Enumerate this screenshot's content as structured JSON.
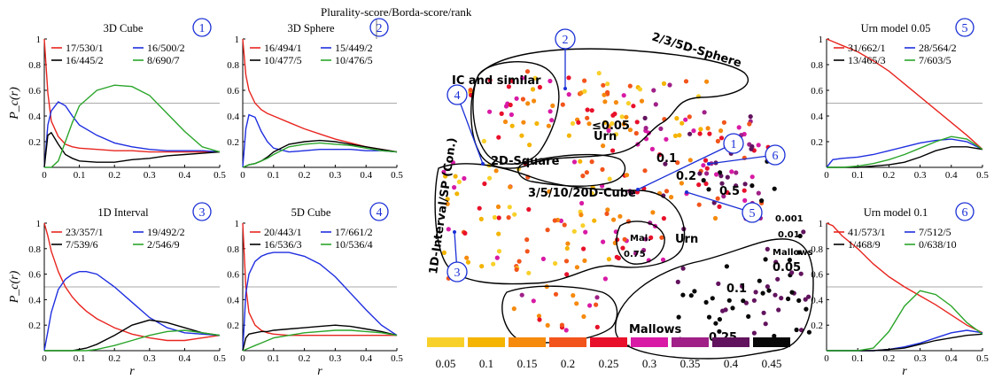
{
  "header_note": "Plurality-score/Borda-score/rank",
  "chart_data": [
    {
      "type": "line",
      "id": 1,
      "title": "3D Cube",
      "badge": "1",
      "xlabel": "",
      "ylabel": "P_c(r)",
      "xlim": [
        0,
        0.5
      ],
      "ylim": [
        0,
        1
      ],
      "xticks": [
        "0",
        "0.1",
        "0.2",
        "0.3",
        "0.4",
        "0.5"
      ],
      "yticks": [
        "0.2",
        "0.4",
        "0.6",
        "0.8",
        "1"
      ],
      "reference_line": 0.5,
      "x": [
        0,
        0.01,
        0.02,
        0.04,
        0.06,
        0.08,
        0.1,
        0.15,
        0.2,
        0.25,
        0.3,
        0.35,
        0.4,
        0.45,
        0.5
      ],
      "series": [
        {
          "name": "17/530/1",
          "color": "#e8251f",
          "values": [
            1,
            0.58,
            0.36,
            0.24,
            0.18,
            0.16,
            0.15,
            0.14,
            0.13,
            0.13,
            0.12,
            0.12,
            0.12,
            0.12,
            0.12
          ]
        },
        {
          "name": "16/500/2",
          "color": "#1f2ee0",
          "values": [
            0,
            0.33,
            0.44,
            0.51,
            0.48,
            0.4,
            0.33,
            0.25,
            0.19,
            0.16,
            0.14,
            0.13,
            0.13,
            0.13,
            0.12
          ]
        },
        {
          "name": "16/445/2",
          "color": "#000000",
          "values": [
            0,
            0.25,
            0.27,
            0.18,
            0.1,
            0.07,
            0.05,
            0.04,
            0.04,
            0.06,
            0.07,
            0.09,
            0.1,
            0.11,
            0.12
          ]
        },
        {
          "name": "8/690/7",
          "color": "#2aa52a",
          "values": [
            0,
            0.0,
            0.0,
            0.05,
            0.2,
            0.35,
            0.48,
            0.6,
            0.64,
            0.63,
            0.56,
            0.42,
            0.28,
            0.16,
            0.12
          ]
        }
      ]
    },
    {
      "type": "line",
      "id": 2,
      "title": "3D Sphere",
      "badge": "2",
      "xlabel": "",
      "ylabel": "",
      "xlim": [
        0,
        0.5
      ],
      "ylim": [
        0,
        1
      ],
      "xticks": [
        "0",
        "0.1",
        "0.2",
        "0.3",
        "0.4",
        "0.5"
      ],
      "yticks": [
        "0.2",
        "0.4",
        "0.6",
        "0.8",
        "1"
      ],
      "reference_line": 0.5,
      "x": [
        0,
        0.01,
        0.02,
        0.04,
        0.06,
        0.08,
        0.1,
        0.15,
        0.2,
        0.25,
        0.3,
        0.35,
        0.4,
        0.45,
        0.5
      ],
      "series": [
        {
          "name": "16/494/1",
          "color": "#e8251f",
          "values": [
            1,
            0.72,
            0.6,
            0.5,
            0.45,
            0.42,
            0.4,
            0.35,
            0.3,
            0.26,
            0.22,
            0.19,
            0.16,
            0.14,
            0.12
          ]
        },
        {
          "name": "15/449/2",
          "color": "#1f2ee0",
          "values": [
            0,
            0.3,
            0.41,
            0.39,
            0.28,
            0.2,
            0.15,
            0.12,
            0.13,
            0.14,
            0.14,
            0.14,
            0.13,
            0.13,
            0.12
          ]
        },
        {
          "name": "10/477/5",
          "color": "#000000",
          "values": [
            0,
            0.01,
            0.02,
            0.03,
            0.05,
            0.08,
            0.12,
            0.18,
            0.2,
            0.21,
            0.2,
            0.18,
            0.16,
            0.14,
            0.12
          ]
        },
        {
          "name": "10/476/5",
          "color": "#2aa52a",
          "values": [
            0,
            0.01,
            0.02,
            0.03,
            0.05,
            0.07,
            0.1,
            0.16,
            0.18,
            0.19,
            0.18,
            0.17,
            0.15,
            0.13,
            0.12
          ]
        }
      ]
    },
    {
      "type": "line",
      "id": 3,
      "title": "1D Interval",
      "badge": "3",
      "xlabel": "r",
      "ylabel": "P_c(r)",
      "xlim": [
        0,
        0.5
      ],
      "ylim": [
        0,
        1
      ],
      "xticks": [
        "0",
        "0.1",
        "0.2",
        "0.3",
        "0.4",
        "0.5"
      ],
      "yticks": [
        "0.2",
        "0.4",
        "0.6",
        "0.8",
        "1"
      ],
      "reference_line": 0.5,
      "x": [
        0,
        0.01,
        0.02,
        0.04,
        0.06,
        0.08,
        0.1,
        0.12,
        0.15,
        0.2,
        0.25,
        0.3,
        0.35,
        0.4,
        0.45,
        0.5
      ],
      "series": [
        {
          "name": "23/357/1",
          "color": "#e8251f",
          "values": [
            1,
            0.9,
            0.78,
            0.62,
            0.5,
            0.42,
            0.36,
            0.31,
            0.25,
            0.18,
            0.13,
            0.1,
            0.08,
            0.08,
            0.1,
            0.12
          ]
        },
        {
          "name": "19/492/2",
          "color": "#1f2ee0",
          "values": [
            0,
            0.15,
            0.3,
            0.48,
            0.56,
            0.6,
            0.62,
            0.62,
            0.6,
            0.5,
            0.38,
            0.26,
            0.18,
            0.14,
            0.13,
            0.12
          ]
        },
        {
          "name": "7/539/6",
          "color": "#000000",
          "values": [
            0,
            0,
            0,
            0,
            0,
            0,
            0.01,
            0.02,
            0.05,
            0.12,
            0.2,
            0.24,
            0.22,
            0.18,
            0.14,
            0.12
          ]
        },
        {
          "name": "2/546/9",
          "color": "#2aa52a",
          "values": [
            0,
            0,
            0,
            0,
            0,
            0,
            0,
            0,
            0.01,
            0.04,
            0.08,
            0.12,
            0.15,
            0.16,
            0.14,
            0.12
          ]
        }
      ]
    },
    {
      "type": "line",
      "id": 4,
      "title": "5D Cube",
      "badge": "4",
      "xlabel": "r",
      "ylabel": "",
      "xlim": [
        0,
        0.5
      ],
      "ylim": [
        0,
        1
      ],
      "xticks": [
        "0",
        "0.1",
        "0.2",
        "0.3",
        "0.4",
        "0.5"
      ],
      "yticks": [
        "0.2",
        "0.4",
        "0.6",
        "0.8",
        "1"
      ],
      "reference_line": 0.5,
      "x": [
        0,
        0.01,
        0.02,
        0.04,
        0.06,
        0.08,
        0.1,
        0.15,
        0.2,
        0.25,
        0.3,
        0.35,
        0.4,
        0.45,
        0.5
      ],
      "series": [
        {
          "name": "20/443/1",
          "color": "#e8251f",
          "values": [
            1,
            0.5,
            0.3,
            0.2,
            0.16,
            0.14,
            0.13,
            0.12,
            0.12,
            0.12,
            0.12,
            0.12,
            0.12,
            0.12,
            0.12
          ]
        },
        {
          "name": "17/661/2",
          "color": "#1f2ee0",
          "values": [
            0,
            0.45,
            0.6,
            0.7,
            0.74,
            0.76,
            0.77,
            0.77,
            0.74,
            0.68,
            0.58,
            0.45,
            0.32,
            0.2,
            0.12
          ]
        },
        {
          "name": "16/536/3",
          "color": "#000000",
          "values": [
            0,
            0.1,
            0.13,
            0.14,
            0.15,
            0.15,
            0.16,
            0.17,
            0.18,
            0.19,
            0.2,
            0.19,
            0.17,
            0.15,
            0.12
          ]
        },
        {
          "name": "10/536/4",
          "color": "#2aa52a",
          "values": [
            0,
            0.01,
            0.02,
            0.04,
            0.06,
            0.08,
            0.1,
            0.12,
            0.14,
            0.15,
            0.16,
            0.16,
            0.15,
            0.14,
            0.12
          ]
        }
      ]
    },
    {
      "type": "line",
      "id": 5,
      "title": "Urn model 0.05",
      "badge": "5",
      "xlabel": "",
      "ylabel": "",
      "xlim": [
        0,
        0.5
      ],
      "ylim": [
        0,
        1
      ],
      "xticks": [
        "0",
        "0.1",
        "0.2",
        "0.3",
        "0.4",
        "0.5"
      ],
      "yticks": [
        "0.2",
        "0.4",
        "0.6",
        "0.8",
        "1"
      ],
      "reference_line": 0.5,
      "x": [
        0,
        0.02,
        0.05,
        0.1,
        0.15,
        0.2,
        0.25,
        0.3,
        0.35,
        0.4,
        0.45,
        0.5
      ],
      "series": [
        {
          "name": "31/662/1",
          "color": "#e8251f",
          "values": [
            1,
            0.98,
            0.95,
            0.9,
            0.83,
            0.75,
            0.65,
            0.55,
            0.45,
            0.35,
            0.25,
            0.14
          ]
        },
        {
          "name": "28/564/2",
          "color": "#1f2ee0",
          "values": [
            0,
            0.06,
            0.07,
            0.08,
            0.1,
            0.13,
            0.16,
            0.19,
            0.21,
            0.22,
            0.2,
            0.14
          ]
        },
        {
          "name": "13/465/3",
          "color": "#000000",
          "values": [
            0,
            0,
            0,
            0,
            0.01,
            0.02,
            0.04,
            0.08,
            0.13,
            0.16,
            0.16,
            0.14
          ]
        },
        {
          "name": "7/603/5",
          "color": "#2aa52a",
          "values": [
            0,
            0,
            0,
            0.01,
            0.03,
            0.06,
            0.1,
            0.15,
            0.2,
            0.24,
            0.22,
            0.14
          ]
        }
      ]
    },
    {
      "type": "line",
      "id": 6,
      "title": "Urn model 0.1",
      "badge": "6",
      "xlabel": "r",
      "ylabel": "",
      "xlim": [
        0,
        0.5
      ],
      "ylim": [
        0,
        1
      ],
      "xticks": [
        "0",
        "0.1",
        "0.2",
        "0.3",
        "0.4",
        "0.5"
      ],
      "yticks": [
        "0.2",
        "0.4",
        "0.6",
        "0.8",
        "1"
      ],
      "reference_line": 0.5,
      "x": [
        0,
        0.02,
        0.05,
        0.1,
        0.15,
        0.2,
        0.25,
        0.3,
        0.35,
        0.4,
        0.45,
        0.5
      ],
      "series": [
        {
          "name": "41/573/1",
          "color": "#e8251f",
          "values": [
            1,
            0.98,
            0.9,
            0.8,
            0.68,
            0.58,
            0.5,
            0.43,
            0.36,
            0.28,
            0.2,
            0.14
          ]
        },
        {
          "name": "7/512/5",
          "color": "#1f2ee0",
          "values": [
            0,
            0,
            0,
            0,
            0,
            0.01,
            0.03,
            0.06,
            0.1,
            0.14,
            0.16,
            0.14
          ]
        },
        {
          "name": "1/468/9",
          "color": "#000000",
          "values": [
            0,
            0,
            0,
            0,
            0,
            0.01,
            0.02,
            0.05,
            0.08,
            0.1,
            0.12,
            0.13
          ]
        },
        {
          "name": "0/638/10",
          "color": "#2aa52a",
          "values": [
            0,
            0,
            0,
            0,
            0.02,
            0.15,
            0.35,
            0.47,
            0.44,
            0.35,
            0.22,
            0.13
          ]
        }
      ]
    },
    {
      "type": "scatter",
      "id": "map",
      "title": "",
      "region_labels": [
        "IC and similar",
        "2/3/5D-Sphere",
        "2D-Square",
        "3/5/10/20D-Cube",
        "1D-Interval/SP (Con.)",
        "Urn",
        "Urn",
        "Mal.",
        "Mallows",
        "Mallows"
      ],
      "value_annotations": [
        "≤0.05",
        "0.1",
        "0.2",
        "0.5",
        "0.75",
        "0.001",
        "0.01",
        "0.05",
        "0.1",
        "0.25",
        "0.5"
      ],
      "badges": [
        "1",
        "2",
        "3",
        "4",
        "5",
        "6"
      ],
      "colorbar": {
        "colors": [
          "#f8d02a",
          "#f4b400",
          "#f58a0d",
          "#f2541b",
          "#e8102a",
          "#d81aa5",
          "#a02088",
          "#62135e",
          "#080808"
        ],
        "labels": [
          "0.05",
          "0.1",
          "0.15",
          "0.2",
          "0.25",
          "0.3",
          "0.35",
          "0.4",
          "0.45"
        ]
      }
    }
  ]
}
